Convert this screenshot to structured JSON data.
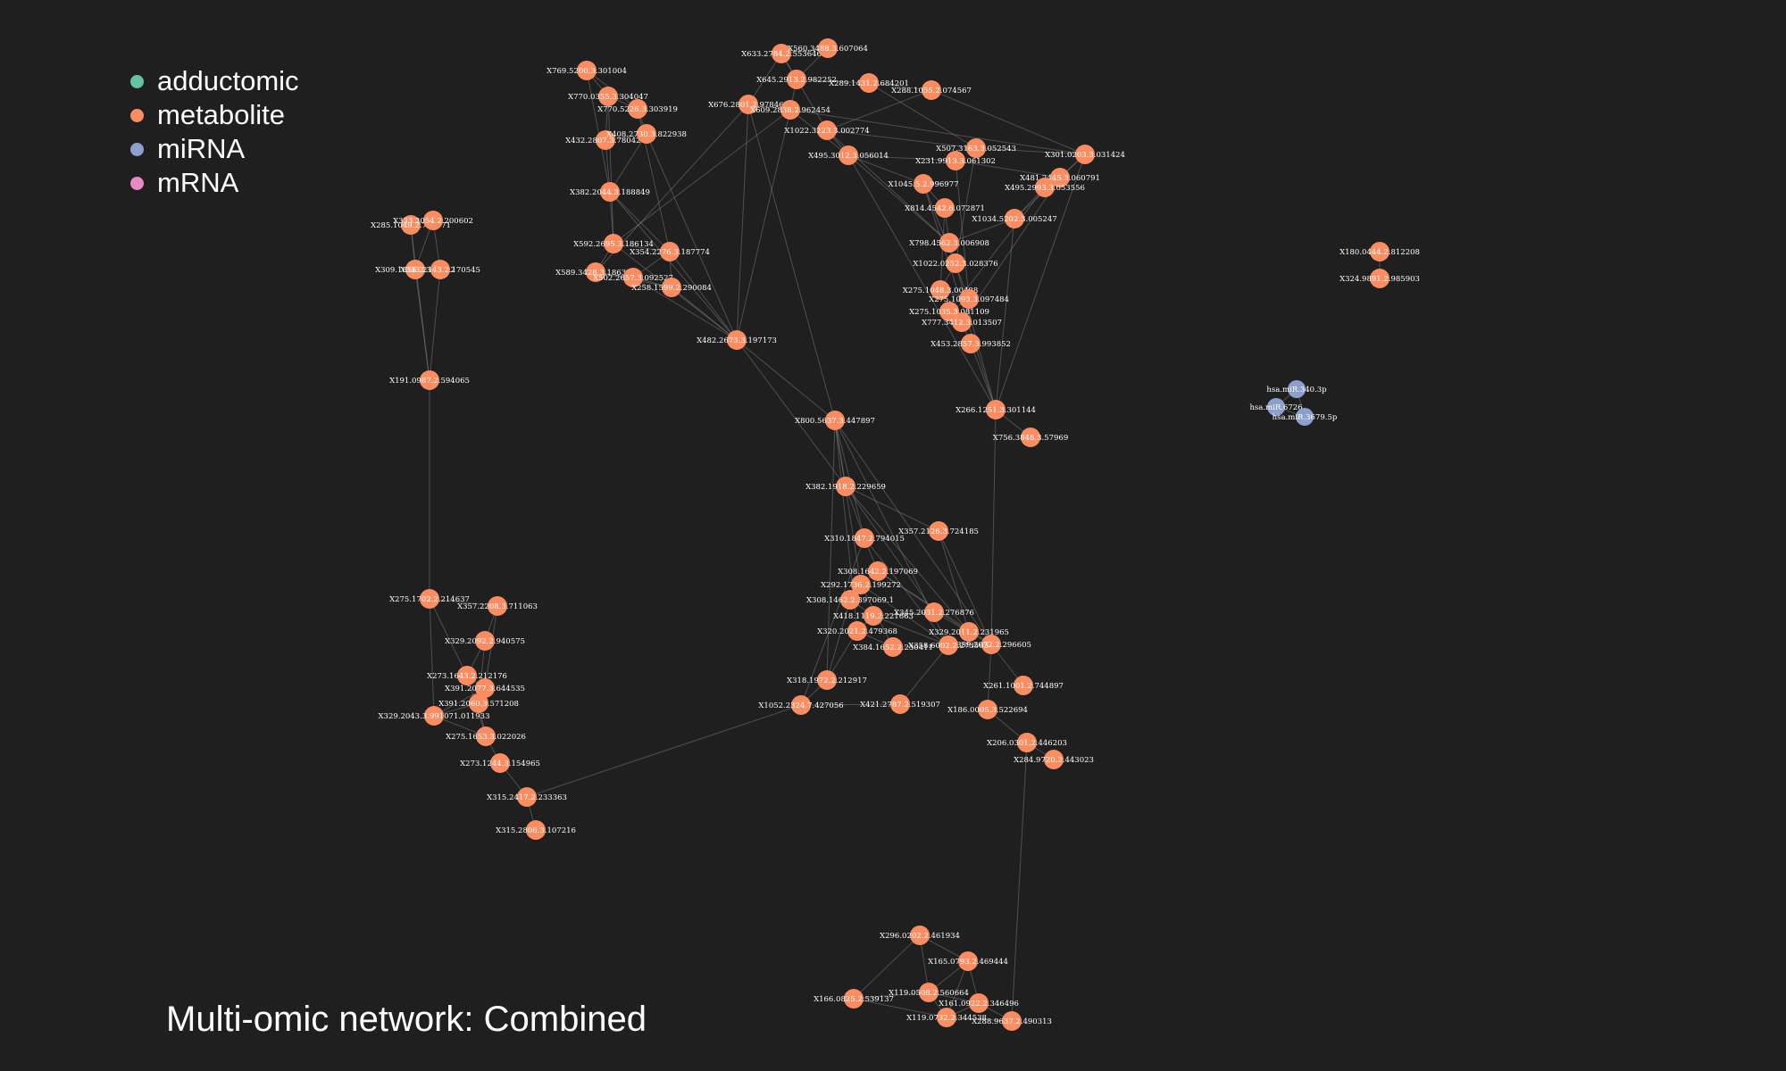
{
  "title": "Multi-omic network: Combined",
  "colors": {
    "background": "#1f1f1f",
    "adductomic": "#66c2a5",
    "metabolite": "#fc8d62",
    "miRNA": "#8da0cb",
    "mRNA": "#e78ac3",
    "edge": "#8a8a8a"
  },
  "legend": [
    {
      "label": "adductomic",
      "type": "adductomic"
    },
    {
      "label": "metabolite",
      "type": "metabolite"
    },
    {
      "label": "miRNA",
      "type": "miRNA"
    },
    {
      "label": "mRNA",
      "type": "mRNA"
    }
  ],
  "nodes": [
    {
      "id": "m1",
      "label": "X769.5200.3.301004",
      "type": "metabolite"
    },
    {
      "id": "m2",
      "label": "X770.0355.3.304047",
      "type": "metabolite"
    },
    {
      "id": "m3",
      "label": "X770.5226.3.303919",
      "type": "metabolite"
    },
    {
      "id": "m4",
      "label": "X432.2807.3.780427",
      "type": "metabolite"
    },
    {
      "id": "m5",
      "label": "X408.2730.3.822938",
      "type": "metabolite"
    },
    {
      "id": "m6",
      "label": "X382.2044.3.188849",
      "type": "metabolite"
    },
    {
      "id": "m7",
      "label": "X592.2695.3.186134",
      "type": "metabolite"
    },
    {
      "id": "m8",
      "label": "X354.2276.3.187774",
      "type": "metabolite"
    },
    {
      "id": "m9",
      "label": "X589.3428.3.186350",
      "type": "metabolite"
    },
    {
      "id": "m10",
      "label": "X502.2657.3.092527",
      "type": "metabolite"
    },
    {
      "id": "m11",
      "label": "X258.1599.2.290084",
      "type": "metabolite"
    },
    {
      "id": "m12",
      "label": "X482.2673.3.197173",
      "type": "metabolite"
    },
    {
      "id": "m13",
      "label": "X633.2784.2.553646",
      "type": "metabolite"
    },
    {
      "id": "m14",
      "label": "X560.3488.3.607064",
      "type": "metabolite"
    },
    {
      "id": "m15",
      "label": "X645.2913.2.982252",
      "type": "metabolite"
    },
    {
      "id": "m16",
      "label": "X289.1431.2.684201",
      "type": "metabolite"
    },
    {
      "id": "m17",
      "label": "X288.1055.2.074567",
      "type": "metabolite"
    },
    {
      "id": "m18",
      "label": "X676.2801.2.978468",
      "type": "metabolite"
    },
    {
      "id": "m19",
      "label": "X609.2838.2.962454",
      "type": "metabolite"
    },
    {
      "id": "m20",
      "label": "X1022.3223.3.002774",
      "type": "metabolite"
    },
    {
      "id": "m21",
      "label": "X495.3012.3.056014",
      "type": "metabolite"
    },
    {
      "id": "m22",
      "label": "X507.3163.3.052543",
      "type": "metabolite"
    },
    {
      "id": "m23",
      "label": "X231.9913.3.061302",
      "type": "metabolite"
    },
    {
      "id": "m24",
      "label": "X301.0203.3.031424",
      "type": "metabolite"
    },
    {
      "id": "m25",
      "label": "X481.2445.3.060791",
      "type": "metabolite"
    },
    {
      "id": "m26",
      "label": "X495.2993.3.053556",
      "type": "metabolite"
    },
    {
      "id": "m27",
      "label": "X1045.5.2.996977",
      "type": "metabolite"
    },
    {
      "id": "m28",
      "label": "X814.4542.6.072871",
      "type": "metabolite"
    },
    {
      "id": "m29",
      "label": "X1034.5202.3.005247",
      "type": "metabolite"
    },
    {
      "id": "m30",
      "label": "X798.4562.3.006908",
      "type": "metabolite"
    },
    {
      "id": "m31",
      "label": "X1022.0252.3.028376",
      "type": "metabolite"
    },
    {
      "id": "m32",
      "label": "X275.1048.3.00488",
      "type": "metabolite"
    },
    {
      "id": "m33",
      "label": "X275.1093.3.097484",
      "type": "metabolite"
    },
    {
      "id": "m34",
      "label": "X275.1035.3.081109",
      "type": "metabolite"
    },
    {
      "id": "m35",
      "label": "X777.3412.3.013507",
      "type": "metabolite"
    },
    {
      "id": "m36",
      "label": "X453.2857.3.993852",
      "type": "metabolite"
    },
    {
      "id": "m37",
      "label": "X266.1251.3.301144",
      "type": "metabolite"
    },
    {
      "id": "m38",
      "label": "X756.3848.3.57969",
      "type": "metabolite"
    },
    {
      "id": "m39",
      "label": "X800.5637.3.447897",
      "type": "metabolite"
    },
    {
      "id": "m40",
      "label": "X382.1918.2.229659",
      "type": "metabolite"
    },
    {
      "id": "m41",
      "label": "X310.1847.2.794015",
      "type": "metabolite"
    },
    {
      "id": "m42",
      "label": "X357.2126.3.724185",
      "type": "metabolite"
    },
    {
      "id": "m43",
      "label": "X308.1642.2.197069",
      "type": "metabolite"
    },
    {
      "id": "m44",
      "label": "X292.1736.2.199272",
      "type": "metabolite"
    },
    {
      "id": "m45",
      "label": "X308.1462.2.397069.1",
      "type": "metabolite"
    },
    {
      "id": "m46",
      "label": "X418.1119.2.221663",
      "type": "metabolite"
    },
    {
      "id": "m47",
      "label": "X345.2031.2.276876",
      "type": "metabolite"
    },
    {
      "id": "m48",
      "label": "X320.2021.2.479368",
      "type": "metabolite"
    },
    {
      "id": "m49",
      "label": "X329.2011.2.231965",
      "type": "metabolite"
    },
    {
      "id": "m50",
      "label": "X359.2072.2.296605",
      "type": "metabolite"
    },
    {
      "id": "m51",
      "label": "X384.1652.2.230411",
      "type": "metabolite"
    },
    {
      "id": "m52",
      "label": "X358.6002.2.273563",
      "type": "metabolite"
    },
    {
      "id": "m53",
      "label": "X318.1972.2.212917",
      "type": "metabolite"
    },
    {
      "id": "m54",
      "label": "X1052.2324.7.427056",
      "type": "metabolite"
    },
    {
      "id": "m55",
      "label": "X421.2787.2.519307",
      "type": "metabolite"
    },
    {
      "id": "m56",
      "label": "X261.1001.2.744897",
      "type": "metabolite"
    },
    {
      "id": "m57",
      "label": "X186.0005.3.522694",
      "type": "metabolite"
    },
    {
      "id": "m58",
      "label": "X206.0301.2.446203",
      "type": "metabolite"
    },
    {
      "id": "m59",
      "label": "X284.9720.2.443023",
      "type": "metabolite"
    },
    {
      "id": "m60",
      "label": "X285.1049.2.725971",
      "type": "metabolite"
    },
    {
      "id": "m61",
      "label": "X333.2054.2.200602",
      "type": "metabolite"
    },
    {
      "id": "m62",
      "label": "X309.1856.2.346612",
      "type": "metabolite"
    },
    {
      "id": "m63",
      "label": "X333.2143.2.170545",
      "type": "metabolite"
    },
    {
      "id": "m64",
      "label": "X191.0987.2.594065",
      "type": "metabolite"
    },
    {
      "id": "m65",
      "label": "X275.1702.2.214637",
      "type": "metabolite"
    },
    {
      "id": "m66",
      "label": "X357.2208.3.711063",
      "type": "metabolite"
    },
    {
      "id": "m67",
      "label": "X329.2092.2.940575",
      "type": "metabolite"
    },
    {
      "id": "m68",
      "label": "X273.1643.2.212176",
      "type": "metabolite"
    },
    {
      "id": "m69",
      "label": "X391.2077.3.644535",
      "type": "metabolite"
    },
    {
      "id": "m70",
      "label": "X391.2060.3.571208",
      "type": "metabolite"
    },
    {
      "id": "m71",
      "label": "X329.2043.3.991071.011933",
      "type": "metabolite"
    },
    {
      "id": "m72",
      "label": "X275.1653.3.022026",
      "type": "metabolite"
    },
    {
      "id": "m73",
      "label": "X273.1244.3.154965",
      "type": "metabolite"
    },
    {
      "id": "m74",
      "label": "X315.2417.2.233363",
      "type": "metabolite"
    },
    {
      "id": "m75",
      "label": "X315.2806.3.107216",
      "type": "metabolite"
    },
    {
      "id": "m76",
      "label": "X180.0444.2.812208",
      "type": "metabolite"
    },
    {
      "id": "m77",
      "label": "X324.9891.2.985903",
      "type": "metabolite"
    },
    {
      "id": "r1",
      "label": "hsa.miR.340.3p",
      "type": "miRNA"
    },
    {
      "id": "r2",
      "label": "hsa.miR.6726",
      "type": "miRNA"
    },
    {
      "id": "r3",
      "label": "hsa.miR.3679.5p",
      "type": "miRNA"
    },
    {
      "id": "m78",
      "label": "X296.0202.2.461934",
      "type": "metabolite"
    },
    {
      "id": "m79",
      "label": "X165.0793.2.469444",
      "type": "metabolite"
    },
    {
      "id": "m80",
      "label": "X166.0825.2.539137",
      "type": "metabolite"
    },
    {
      "id": "m81",
      "label": "X119.0508.2.560664",
      "type": "metabolite"
    },
    {
      "id": "m82",
      "label": "X161.0922.2.346496",
      "type": "metabolite"
    },
    {
      "id": "m83",
      "label": "X119.0732.2.344538",
      "type": "metabolite"
    },
    {
      "id": "m84",
      "label": "X288.9637.2.490313",
      "type": "metabolite"
    }
  ],
  "edges": [
    [
      "m1",
      "m2"
    ],
    [
      "m1",
      "m3"
    ],
    [
      "m2",
      "m3"
    ],
    [
      "m2",
      "m4"
    ],
    [
      "m3",
      "m5"
    ],
    [
      "m4",
      "m5"
    ],
    [
      "m4",
      "m6"
    ],
    [
      "m5",
      "m6"
    ],
    [
      "m6",
      "m7"
    ],
    [
      "m6",
      "m8"
    ],
    [
      "m7",
      "m8"
    ],
    [
      "m7",
      "m9"
    ],
    [
      "m8",
      "m10"
    ],
    [
      "m9",
      "m10"
    ],
    [
      "m10",
      "m11"
    ],
    [
      "m8",
      "m11"
    ],
    [
      "m9",
      "m11"
    ],
    [
      "m1",
      "m6"
    ],
    [
      "m2",
      "m7"
    ],
    [
      "m3",
      "m8"
    ],
    [
      "m5",
      "m12"
    ],
    [
      "m6",
      "m12"
    ],
    [
      "m8",
      "m12"
    ],
    [
      "m10",
      "m12"
    ],
    [
      "m11",
      "m12"
    ],
    [
      "m7",
      "m12"
    ],
    [
      "m13",
      "m14"
    ],
    [
      "m13",
      "m15"
    ],
    [
      "m14",
      "m15"
    ],
    [
      "m15",
      "m16"
    ],
    [
      "m16",
      "m17"
    ],
    [
      "m13",
      "m18"
    ],
    [
      "m15",
      "m19"
    ],
    [
      "m18",
      "m19"
    ],
    [
      "m18",
      "m12"
    ],
    [
      "m19",
      "m12"
    ],
    [
      "m18",
      "m9"
    ],
    [
      "m19",
      "m7"
    ],
    [
      "m18",
      "m39"
    ],
    [
      "m13",
      "m20"
    ],
    [
      "m20",
      "m21"
    ],
    [
      "m20",
      "m22"
    ],
    [
      "m21",
      "m23"
    ],
    [
      "m22",
      "m24"
    ],
    [
      "m23",
      "m25"
    ],
    [
      "m24",
      "m25"
    ],
    [
      "m25",
      "m26"
    ],
    [
      "m21",
      "m27"
    ],
    [
      "m27",
      "m28"
    ],
    [
      "m26",
      "m29"
    ],
    [
      "m28",
      "m30"
    ],
    [
      "m29",
      "m30"
    ],
    [
      "m30",
      "m31"
    ],
    [
      "m31",
      "m32"
    ],
    [
      "m32",
      "m33"
    ],
    [
      "m33",
      "m34"
    ],
    [
      "m34",
      "m35"
    ],
    [
      "m35",
      "m36"
    ],
    [
      "m36",
      "m37"
    ],
    [
      "m24",
      "m37"
    ],
    [
      "m21",
      "m37"
    ],
    [
      "m27",
      "m37"
    ],
    [
      "m29",
      "m37"
    ],
    [
      "m31",
      "m37"
    ],
    [
      "m37",
      "m38"
    ],
    [
      "m17",
      "m24"
    ],
    [
      "m16",
      "m22"
    ],
    [
      "m20",
      "m30"
    ],
    [
      "m22",
      "m31"
    ],
    [
      "m23",
      "m33"
    ],
    [
      "m26",
      "m34"
    ],
    [
      "m25",
      "m35"
    ],
    [
      "m21",
      "m30"
    ],
    [
      "m28",
      "m32"
    ],
    [
      "m27",
      "m33"
    ],
    [
      "m24",
      "m29"
    ],
    [
      "m19",
      "m21"
    ],
    [
      "m19",
      "m24"
    ],
    [
      "m17",
      "m20"
    ],
    [
      "m12",
      "m39"
    ],
    [
      "m12",
      "m40"
    ],
    [
      "m39",
      "m40"
    ],
    [
      "m39",
      "m41"
    ],
    [
      "m40",
      "m41"
    ],
    [
      "m40",
      "m42"
    ],
    [
      "m41",
      "m43"
    ],
    [
      "m43",
      "m44"
    ],
    [
      "m44",
      "m45"
    ],
    [
      "m45",
      "m46"
    ],
    [
      "m46",
      "m47"
    ],
    [
      "m46",
      "m48"
    ],
    [
      "m47",
      "m49"
    ],
    [
      "m48",
      "m51"
    ],
    [
      "m49",
      "m50"
    ],
    [
      "m50",
      "m52"
    ],
    [
      "m51",
      "m52"
    ],
    [
      "m48",
      "m53"
    ],
    [
      "m53",
      "m54"
    ],
    [
      "m54",
      "m55"
    ],
    [
      "m52",
      "m55"
    ],
    [
      "m50",
      "m57"
    ],
    [
      "m50",
      "m56"
    ],
    [
      "m57",
      "m58"
    ],
    [
      "m58",
      "m59"
    ],
    [
      "m39",
      "m44"
    ],
    [
      "m39",
      "m48"
    ],
    [
      "m39",
      "m50"
    ],
    [
      "m40",
      "m47"
    ],
    [
      "m40",
      "m49"
    ],
    [
      "m41",
      "m52"
    ],
    [
      "m42",
      "m49"
    ],
    [
      "m43",
      "m50"
    ],
    [
      "m44",
      "m51"
    ],
    [
      "m45",
      "m53"
    ],
    [
      "m46",
      "m52"
    ],
    [
      "m39",
      "m53"
    ],
    [
      "m41",
      "m54"
    ],
    [
      "m37",
      "m50"
    ],
    [
      "m39",
      "m52"
    ],
    [
      "m42",
      "m50"
    ],
    [
      "m43",
      "m49"
    ],
    [
      "m44",
      "m52"
    ],
    [
      "m60",
      "m61"
    ],
    [
      "m60",
      "m62"
    ],
    [
      "m61",
      "m63"
    ],
    [
      "m62",
      "m63"
    ],
    [
      "m61",
      "m62"
    ],
    [
      "m62",
      "m64"
    ],
    [
      "m63",
      "m64"
    ],
    [
      "m60",
      "m64"
    ],
    [
      "m64",
      "m65"
    ],
    [
      "m65",
      "m66"
    ],
    [
      "m65",
      "m68"
    ],
    [
      "m65",
      "m71"
    ],
    [
      "m66",
      "m67"
    ],
    [
      "m67",
      "m68"
    ],
    [
      "m68",
      "m69"
    ],
    [
      "m69",
      "m70"
    ],
    [
      "m70",
      "m71"
    ],
    [
      "m71",
      "m72"
    ],
    [
      "m70",
      "m72"
    ],
    [
      "m72",
      "m73"
    ],
    [
      "m73",
      "m74"
    ],
    [
      "m74",
      "m75"
    ],
    [
      "m67",
      "m70"
    ],
    [
      "m69",
      "m71"
    ],
    [
      "m68",
      "m72"
    ],
    [
      "m66",
      "m69"
    ],
    [
      "m74",
      "m54"
    ],
    [
      "m76",
      "m77"
    ],
    [
      "r1",
      "r2"
    ],
    [
      "r2",
      "r3"
    ],
    [
      "r1",
      "r3"
    ],
    [
      "m78",
      "m79"
    ],
    [
      "m78",
      "m80"
    ],
    [
      "m78",
      "m81"
    ],
    [
      "m79",
      "m81"
    ],
    [
      "m79",
      "m82"
    ],
    [
      "m80",
      "m81"
    ],
    [
      "m81",
      "m82"
    ],
    [
      "m81",
      "m83"
    ],
    [
      "m82",
      "m83"
    ],
    [
      "m83",
      "m84"
    ],
    [
      "m82",
      "m84"
    ],
    [
      "m80",
      "m83"
    ],
    [
      "m79",
      "m83"
    ],
    [
      "m58",
      "m84"
    ]
  ]
}
